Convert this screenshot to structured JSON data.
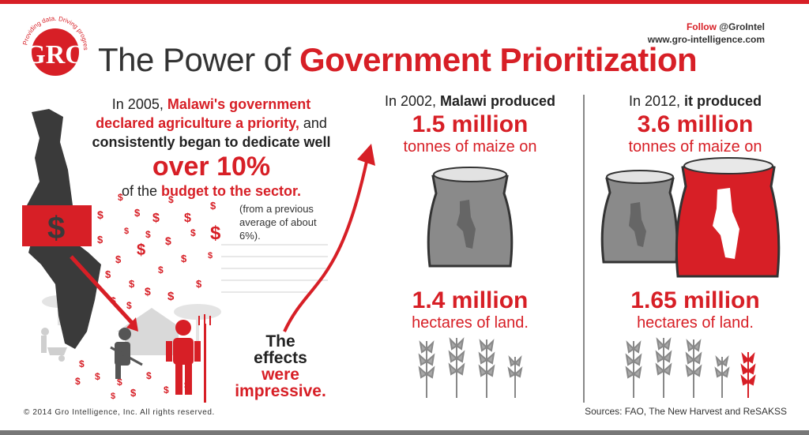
{
  "header": {
    "title_plain": "The Power of ",
    "title_emphasis": "Government Prioritization",
    "follow_label": "Follow",
    "follow_handle": "@GroIntel",
    "website": "www.gro-intelligence.com",
    "logo_text": "GRO",
    "logo_ring_text": "Providing data. Driving progress"
  },
  "left": {
    "p1": "In 2005,",
    "p2": "Malawi's government",
    "p3": "declared agriculture a priority,",
    "p4": "and",
    "p5": "consistently began to dedicate well",
    "big": "over 10%",
    "p6": "of the",
    "p7": "budget to the sector.",
    "note": "(from a previous average of about 6%).",
    "effects_1": "The",
    "effects_2": "effects",
    "effects_3": "were",
    "effects_4": "impressive."
  },
  "col_2002": {
    "year_text": "In 2002,",
    "subject": "Malawi produced",
    "amount": "1.5 million",
    "unit": "tonnes of maize on",
    "land_amount": "1.4 million",
    "land_unit": "hectares of land."
  },
  "col_2012": {
    "year_text": "In 2012,",
    "subject": "it produced",
    "amount": "3.6 million",
    "unit": "tonnes of maize on",
    "land_amount": "1.65 million",
    "land_unit": "hectares of land."
  },
  "footer": {
    "copyright": "© 2014 Gro Intelligence, Inc. All rights reserved.",
    "sources": "Sources: FAO, The New Harvest and ReSAKSS"
  },
  "colors": {
    "accent": "#d71f26",
    "dark": "#333333",
    "gray": "#8a8a8a"
  },
  "icons": [
    "gro-logo-icon",
    "malawi-map-icon",
    "dollar-sign-icon",
    "farmer-icon",
    "hut-icon",
    "tree-icon",
    "wheelbarrow-icon",
    "growth-arrow-icon",
    "maize-sack-icon",
    "wheat-stalk-icon"
  ]
}
